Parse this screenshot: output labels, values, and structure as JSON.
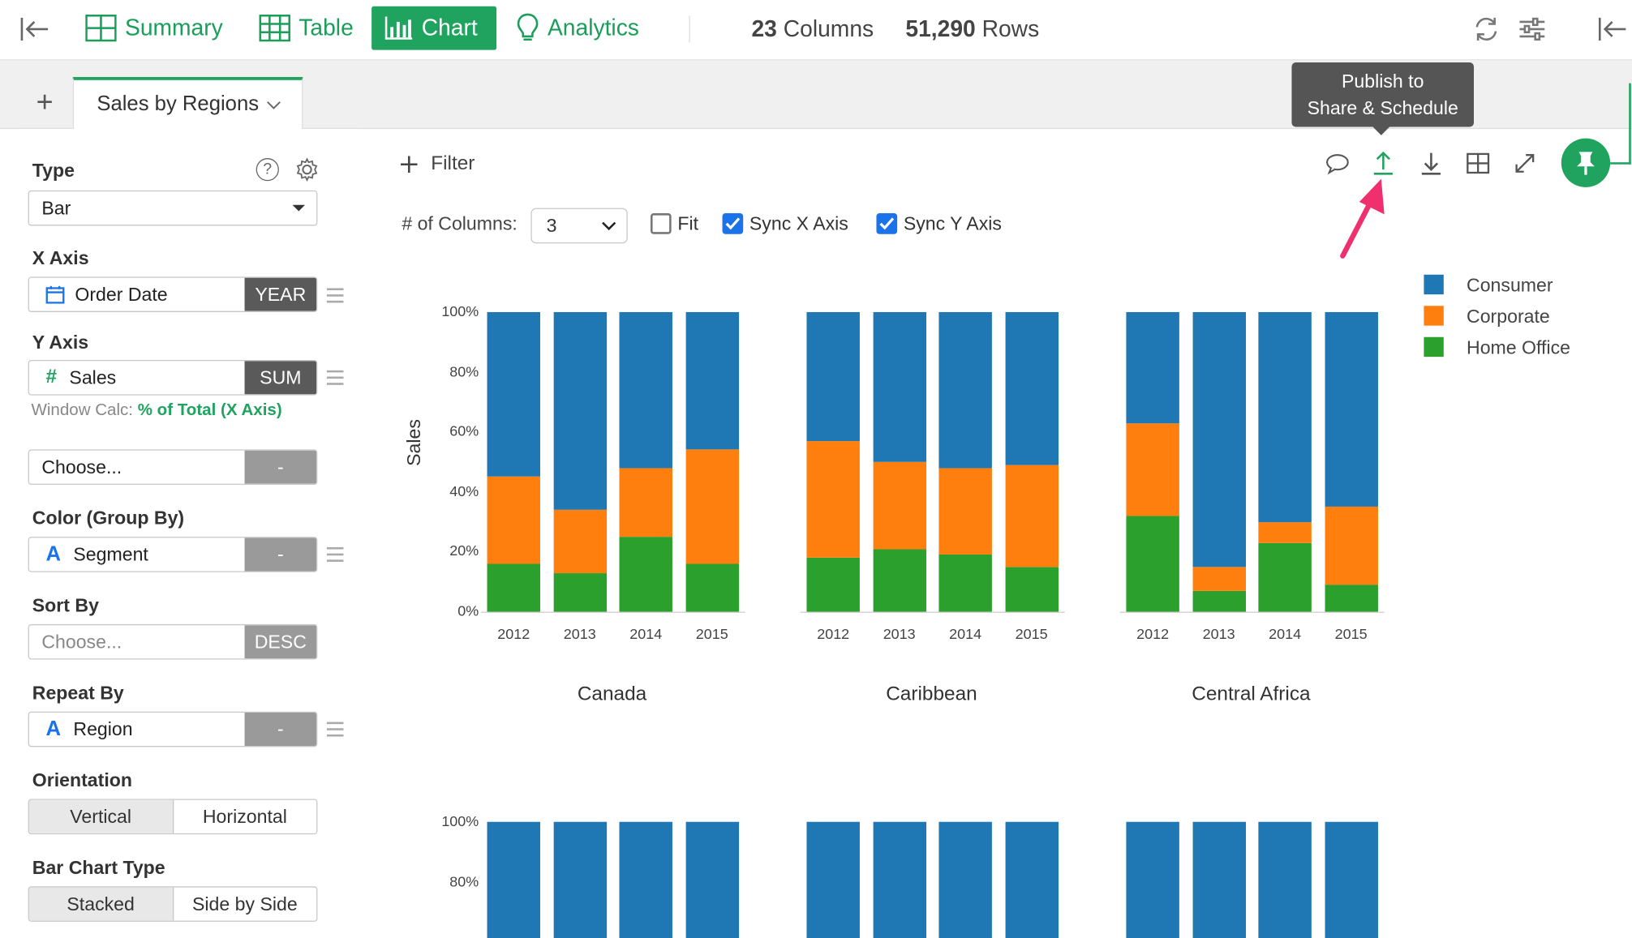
{
  "topbar": {
    "tabs": [
      {
        "label": "Summary",
        "icon": "summary-grid-icon"
      },
      {
        "label": "Table",
        "icon": "table-icon"
      },
      {
        "label": "Chart",
        "icon": "bar-chart-icon"
      },
      {
        "label": "Analytics",
        "icon": "lightbulb-icon"
      }
    ],
    "columns_count": "23",
    "columns_label": "Columns",
    "rows_count": "51,290",
    "rows_label": "Rows"
  },
  "tabbar": {
    "add_label": "+",
    "active_tab": "Sales by Regions"
  },
  "sidebar": {
    "type_label": "Type",
    "type_value": "Bar",
    "xaxis_label": "X Axis",
    "xaxis_field": "Order Date",
    "xaxis_agg": "YEAR",
    "yaxis_label": "Y Axis",
    "yaxis_field": "Sales",
    "yaxis_agg": "SUM",
    "window_calc_label": "Window Calc:",
    "window_calc_value": "% of Total (X Axis)",
    "extra_placeholder": "Choose...",
    "extra_pill": "-",
    "color_label": "Color (Group By)",
    "color_field": "Segment",
    "color_pill": "-",
    "sort_label": "Sort By",
    "sort_placeholder": "Choose...",
    "sort_pill": "DESC",
    "repeat_label": "Repeat By",
    "repeat_field": "Region",
    "repeat_pill": "-",
    "orientation_label": "Orientation",
    "orientation_options": [
      "Vertical",
      "Horizontal"
    ],
    "barchart_label": "Bar Chart Type",
    "barchart_options": [
      "Stacked",
      "Side by Side"
    ]
  },
  "toolbar": {
    "filter_label": "Filter",
    "columns_label": "# of Columns:",
    "columns_value": "3",
    "fit_label": "Fit",
    "fit_checked": false,
    "syncx_label": "Sync X Axis",
    "syncx_checked": true,
    "syncy_label": "Sync Y Axis",
    "syncy_checked": true,
    "tooltip": "Publish to Share & Schedule",
    "tooltip_line1": "Publish to",
    "tooltip_line2": "Share & Schedule"
  },
  "colors": {
    "consumer": "#1f77b4",
    "corporate": "#ff7f0e",
    "home_office": "#2ca02c",
    "accent": "#20a35f",
    "arrow": "#f0306e"
  },
  "chart_data": {
    "type": "bar",
    "stacked": true,
    "ylabel": "Sales",
    "yticks": [
      "100%",
      "80%",
      "60%",
      "40%",
      "20%",
      "0%"
    ],
    "ylim": [
      0,
      100
    ],
    "legend": [
      "Consumer",
      "Corporate",
      "Home Office"
    ],
    "legend_position": "right",
    "categories": [
      "2012",
      "2013",
      "2014",
      "2015"
    ],
    "panels": [
      {
        "title": "Canada",
        "series": [
          {
            "name": "Home Office",
            "values": [
              16,
              13,
              25,
              16
            ]
          },
          {
            "name": "Corporate",
            "values": [
              29,
              21,
              23,
              38
            ]
          },
          {
            "name": "Consumer",
            "values": [
              55,
              66,
              52,
              46
            ]
          }
        ]
      },
      {
        "title": "Caribbean",
        "series": [
          {
            "name": "Home Office",
            "values": [
              18,
              21,
              19,
              15
            ]
          },
          {
            "name": "Corporate",
            "values": [
              39,
              29,
              29,
              34
            ]
          },
          {
            "name": "Consumer",
            "values": [
              43,
              50,
              52,
              51
            ]
          }
        ]
      },
      {
        "title": "Central Africa",
        "series": [
          {
            "name": "Home Office",
            "values": [
              32,
              7,
              23,
              9
            ]
          },
          {
            "name": "Corporate",
            "values": [
              31,
              8,
              7,
              26
            ]
          },
          {
            "name": "Consumer",
            "values": [
              37,
              85,
              70,
              65
            ]
          }
        ]
      }
    ],
    "second_row_yticks": [
      "100%",
      "80%"
    ]
  }
}
